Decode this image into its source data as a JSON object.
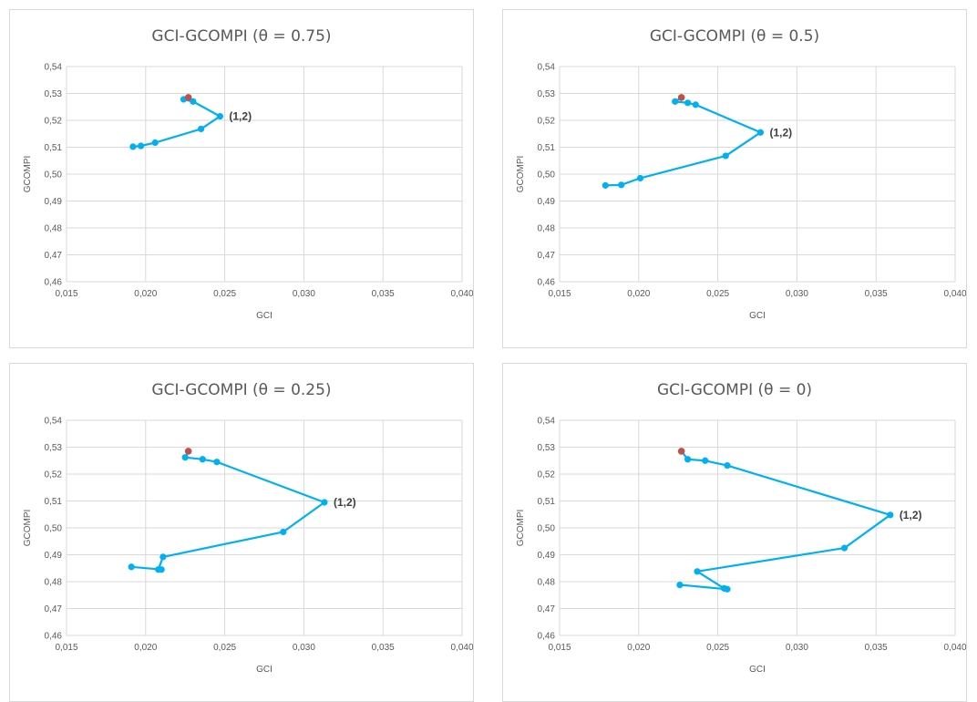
{
  "colors": {
    "line": "#00b0f0",
    "point": "#00b0f0",
    "highlight": "#c0504d",
    "grid": "#d9d9d9",
    "text": "#595959"
  },
  "chart_data": [
    {
      "type": "scatter",
      "title": "GCI-GCOMPI (θ = 0.75)",
      "xlabel": "GCI",
      "ylabel": "GCOMPI",
      "xlim": [
        0.015,
        0.04
      ],
      "ylim": [
        0.46,
        0.54
      ],
      "xticks": [
        "0,015",
        "0,020",
        "0,025",
        "0,030",
        "0,035",
        "0,040"
      ],
      "yticks": [
        "0,46",
        "0,47",
        "0,48",
        "0,49",
        "0,50",
        "0,51",
        "0,52",
        "0,53",
        "0,54"
      ],
      "grid": true,
      "series": [
        {
          "x": [
            0.0227,
            0.0224,
            0.023,
            0.0247,
            0.0235,
            0.0206,
            0.0197,
            0.0192
          ],
          "y": [
            0.5285,
            0.5278,
            0.527,
            0.5215,
            0.5168,
            0.5117,
            0.5105,
            0.5102
          ]
        }
      ],
      "highlight_point": {
        "x": 0.0227,
        "y": 0.5285
      },
      "annotation": {
        "text": "(1,2)",
        "x": 0.0247,
        "y": 0.5215
      }
    },
    {
      "type": "scatter",
      "title": "GCI-GCOMPI (θ = 0.5)",
      "xlabel": "GCI",
      "ylabel": "GCOMPI",
      "xlim": [
        0.015,
        0.04
      ],
      "ylim": [
        0.46,
        0.54
      ],
      "xticks": [
        "0,015",
        "0,020",
        "0,025",
        "0,030",
        "0,035",
        "0,040"
      ],
      "yticks": [
        "0,46",
        "0,47",
        "0,48",
        "0,49",
        "0,50",
        "0,51",
        "0,52",
        "0,53",
        "0,54"
      ],
      "grid": true,
      "series": [
        {
          "x": [
            0.0227,
            0.0223,
            0.0231,
            0.0236,
            0.0277,
            0.0255,
            0.0201,
            0.0189,
            0.0179
          ],
          "y": [
            0.5285,
            0.527,
            0.5265,
            0.5258,
            0.5155,
            0.5068,
            0.4985,
            0.496,
            0.4958
          ]
        }
      ],
      "highlight_point": {
        "x": 0.0227,
        "y": 0.5285
      },
      "annotation": {
        "text": "(1,2)",
        "x": 0.0277,
        "y": 0.5155
      }
    },
    {
      "type": "scatter",
      "title": "GCI-GCOMPI (θ = 0.25)",
      "xlabel": "GCI",
      "ylabel": "GCOMPI",
      "xlim": [
        0.015,
        0.04
      ],
      "ylim": [
        0.46,
        0.54
      ],
      "xticks": [
        "0,015",
        "0,020",
        "0,025",
        "0,030",
        "0,035",
        "0,040"
      ],
      "yticks": [
        "0,46",
        "0,47",
        "0,48",
        "0,49",
        "0,50",
        "0,51",
        "0,52",
        "0,53",
        "0,54"
      ],
      "grid": true,
      "series": [
        {
          "x": [
            0.0227,
            0.0225,
            0.0236,
            0.0245,
            0.0313,
            0.0287,
            0.0211,
            0.0208,
            0.021,
            0.0191
          ],
          "y": [
            0.5285,
            0.5262,
            0.5255,
            0.5245,
            0.5095,
            0.4985,
            0.4892,
            0.4845,
            0.4845,
            0.4855
          ]
        }
      ],
      "highlight_point": {
        "x": 0.0227,
        "y": 0.5285
      },
      "annotation": {
        "text": "(1,2)",
        "x": 0.0313,
        "y": 0.5095
      }
    },
    {
      "type": "scatter",
      "title": "GCI-GCOMPI (θ = 0)",
      "xlabel": "GCI",
      "ylabel": "GCOMPI",
      "xlim": [
        0.015,
        0.04
      ],
      "ylim": [
        0.46,
        0.54
      ],
      "xticks": [
        "0,015",
        "0,020",
        "0,025",
        "0,030",
        "0,035",
        "0,040"
      ],
      "yticks": [
        "0,46",
        "0,47",
        "0,48",
        "0,49",
        "0,50",
        "0,51",
        "0,52",
        "0,53",
        "0,54"
      ],
      "grid": true,
      "series": [
        {
          "x": [
            0.0227,
            0.0231,
            0.0242,
            0.0256,
            0.0359,
            0.033,
            0.0237,
            0.0254,
            0.0256,
            0.0226
          ],
          "y": [
            0.5285,
            0.5255,
            0.525,
            0.5232,
            0.5048,
            0.4925,
            0.4838,
            0.4775,
            0.4772,
            0.4788
          ]
        }
      ],
      "highlight_point": {
        "x": 0.0227,
        "y": 0.5285
      },
      "annotation": {
        "text": "(1,2)",
        "x": 0.0359,
        "y": 0.5048
      }
    }
  ]
}
